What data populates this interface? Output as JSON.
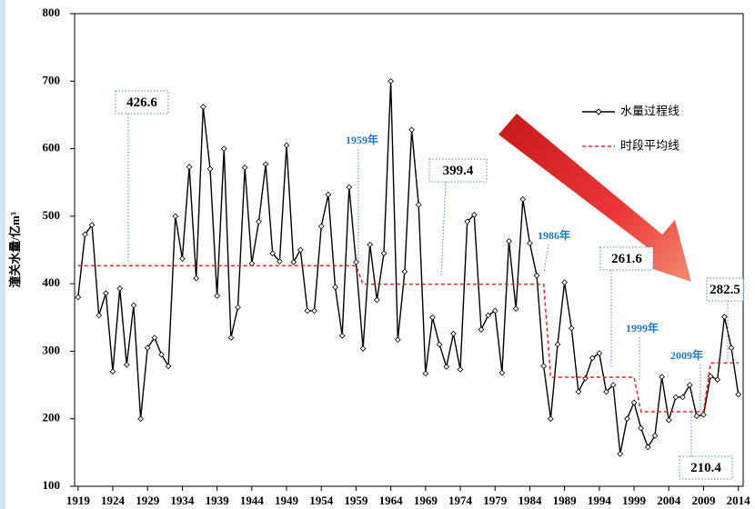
{
  "chart_data": {
    "type": "line",
    "y_label": "潼关水量/亿m³",
    "x": [
      1919,
      1920,
      1921,
      1922,
      1923,
      1924,
      1925,
      1926,
      1927,
      1928,
      1929,
      1930,
      1931,
      1932,
      1933,
      1934,
      1935,
      1936,
      1937,
      1938,
      1939,
      1940,
      1941,
      1942,
      1943,
      1944,
      1945,
      1946,
      1947,
      1948,
      1949,
      1950,
      1951,
      1952,
      1953,
      1954,
      1955,
      1956,
      1957,
      1958,
      1959,
      1960,
      1961,
      1962,
      1963,
      1964,
      1965,
      1966,
      1967,
      1968,
      1969,
      1970,
      1971,
      1972,
      1973,
      1974,
      1975,
      1976,
      1977,
      1978,
      1979,
      1980,
      1981,
      1982,
      1983,
      1984,
      1985,
      1986,
      1987,
      1988,
      1989,
      1990,
      1991,
      1992,
      1993,
      1994,
      1995,
      1996,
      1997,
      1998,
      1999,
      2000,
      2001,
      2002,
      2003,
      2004,
      2005,
      2006,
      2007,
      2008,
      2009,
      2010,
      2011,
      2012,
      2013,
      2014
    ],
    "series": [
      {
        "name": "水量过程线",
        "color": "#000000",
        "marker": "diamond",
        "dash": false,
        "values": [
          380,
          473,
          487,
          353,
          386,
          270,
          393,
          280,
          368,
          200,
          305,
          320,
          295,
          278,
          500,
          437,
          573,
          408,
          662,
          570,
          382,
          600,
          320,
          365,
          572,
          430,
          492,
          577,
          445,
          433,
          605,
          432,
          450,
          360,
          360,
          485,
          532,
          395,
          323,
          543,
          432,
          304,
          458,
          376,
          445,
          700,
          317,
          418,
          628,
          517,
          267,
          350,
          310,
          277,
          326,
          273,
          492,
          502,
          332,
          353,
          360,
          268,
          463,
          363,
          525,
          460,
          412,
          278,
          200,
          310,
          402,
          334,
          240,
          260,
          290,
          297,
          240,
          250,
          148,
          200,
          224,
          186,
          158,
          175,
          262,
          198,
          232,
          232,
          250,
          204,
          206,
          263,
          258,
          351,
          305,
          236
        ]
      },
      {
        "name": "时段平均线",
        "color": "#e8231e",
        "marker": "none",
        "dash": true,
        "values": [
          426.6,
          426.6,
          426.6,
          426.6,
          426.6,
          426.6,
          426.6,
          426.6,
          426.6,
          426.6,
          426.6,
          426.6,
          426.6,
          426.6,
          426.6,
          426.6,
          426.6,
          426.6,
          426.6,
          426.6,
          426.6,
          426.6,
          426.6,
          426.6,
          426.6,
          426.6,
          426.6,
          426.6,
          426.6,
          426.6,
          426.6,
          426.6,
          426.6,
          426.6,
          426.6,
          426.6,
          426.6,
          426.6,
          426.6,
          426.6,
          426.6,
          399.4,
          399.4,
          399.4,
          399.4,
          399.4,
          399.4,
          399.4,
          399.4,
          399.4,
          399.4,
          399.4,
          399.4,
          399.4,
          399.4,
          399.4,
          399.4,
          399.4,
          399.4,
          399.4,
          399.4,
          399.4,
          399.4,
          399.4,
          399.4,
          399.4,
          399.4,
          399.4,
          261.6,
          261.6,
          261.6,
          261.6,
          261.6,
          261.6,
          261.6,
          261.6,
          261.6,
          261.6,
          261.6,
          261.6,
          261.6,
          210.4,
          210.4,
          210.4,
          210.4,
          210.4,
          210.4,
          210.4,
          210.4,
          210.4,
          210.4,
          282.5,
          282.5,
          282.5,
          282.5,
          282.5
        ]
      }
    ],
    "annotations": [
      "426.6",
      "399.4",
      "261.6",
      "210.4",
      "282.5",
      "1959年",
      "1986年",
      "1999年",
      "2009年"
    ],
    "xlim": [
      1918.5,
      2014.7
    ],
    "xticks": [
      1919,
      1924,
      1929,
      1934,
      1939,
      1944,
      1949,
      1954,
      1959,
      1964,
      1969,
      1974,
      1979,
      1984,
      1989,
      1994,
      1999,
      2004,
      2009,
      2014
    ],
    "ylim": [
      100,
      800
    ],
    "yticks": [
      100,
      200,
      300,
      400,
      500,
      600,
      700,
      800
    ],
    "legend": "upper right"
  }
}
